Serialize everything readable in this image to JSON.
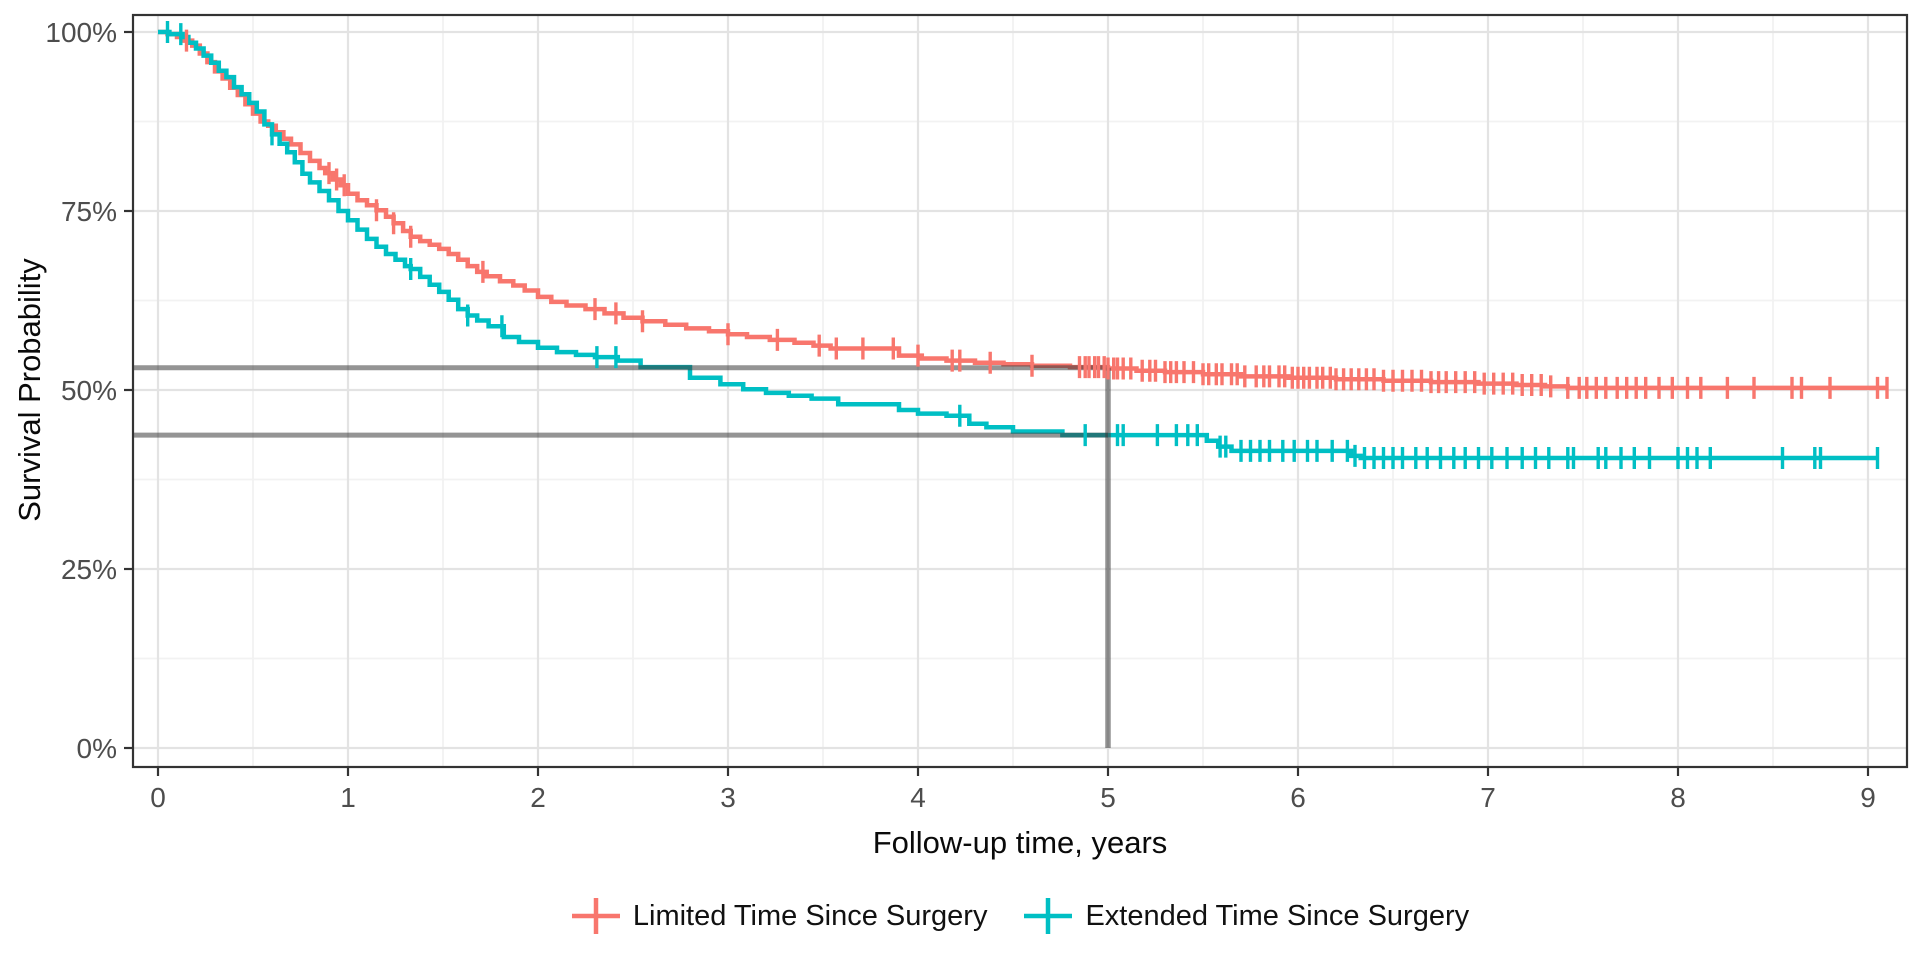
{
  "chart_data": {
    "type": "line",
    "subtype": "kaplan-meier-step",
    "title": "",
    "xlabel": "Follow-up time, years",
    "ylabel": "Survival Probability",
    "xlim": [
      -0.13,
      9.2
    ],
    "ylim": [
      0,
      1
    ],
    "grid": true,
    "legend_position": "bottom",
    "axes": {
      "x_ticks": {
        "values": [
          0,
          1,
          2,
          3,
          4,
          5,
          6,
          7,
          8,
          9
        ],
        "labels": [
          "0",
          "1",
          "2",
          "3",
          "4",
          "5",
          "6",
          "7",
          "8",
          "9"
        ]
      },
      "y_ticks": {
        "values": [
          0,
          0.25,
          0.5,
          0.75,
          1.0
        ],
        "labels": [
          "0%",
          "25%",
          "50%",
          "75%",
          "100%"
        ]
      },
      "x_minor": [
        0.5,
        1.5,
        2.5,
        3.5,
        4.5,
        5.5,
        6.5,
        7.5,
        8.5
      ],
      "y_minor": [
        0.125,
        0.375,
        0.625,
        0.875
      ]
    },
    "style": {
      "series_red": "#F8766D",
      "series_teal": "#00BFC4",
      "reference_rgba": "rgba(60,60,60,0.55)",
      "grid_major": "#E3E3E3",
      "grid_minor": "#F2F2F2",
      "panel_border": "#333333",
      "tick_mark": "#333333",
      "tick_text": "#4D4D4D"
    },
    "reference_lines": {
      "horizontal": [
        {
          "y": 0.531,
          "x_start": -0.132,
          "x_end": 5
        },
        {
          "y": 0.437,
          "x_start": -0.132,
          "x_end": 5
        }
      ],
      "vertical": [
        {
          "x": 5,
          "y_bottom": 0,
          "y_top": 0.531
        }
      ]
    },
    "series": [
      {
        "name": "Limited Time Since Surgery",
        "color": "#F8766D",
        "points": [
          [
            0,
            1
          ],
          [
            0.05,
            0.997
          ],
          [
            0.1,
            0.993
          ],
          [
            0.14,
            0.988
          ],
          [
            0.18,
            0.981
          ],
          [
            0.22,
            0.97
          ],
          [
            0.26,
            0.958
          ],
          [
            0.3,
            0.945
          ],
          [
            0.34,
            0.935
          ],
          [
            0.38,
            0.922
          ],
          [
            0.42,
            0.912
          ],
          [
            0.46,
            0.899
          ],
          [
            0.5,
            0.886
          ],
          [
            0.54,
            0.875
          ],
          [
            0.58,
            0.869
          ],
          [
            0.62,
            0.86
          ],
          [
            0.66,
            0.851
          ],
          [
            0.7,
            0.843
          ],
          [
            0.75,
            0.831
          ],
          [
            0.8,
            0.82
          ],
          [
            0.85,
            0.81
          ],
          [
            0.88,
            0.803
          ],
          [
            0.92,
            0.794
          ],
          [
            0.96,
            0.786
          ],
          [
            1.0,
            0.774
          ],
          [
            1.05,
            0.765
          ],
          [
            1.1,
            0.758
          ],
          [
            1.15,
            0.751
          ],
          [
            1.2,
            0.742
          ],
          [
            1.24,
            0.733
          ],
          [
            1.29,
            0.722
          ],
          [
            1.33,
            0.714
          ],
          [
            1.38,
            0.708
          ],
          [
            1.43,
            0.703
          ],
          [
            1.48,
            0.697
          ],
          [
            1.53,
            0.69
          ],
          [
            1.58,
            0.682
          ],
          [
            1.63,
            0.673
          ],
          [
            1.68,
            0.665
          ],
          [
            1.73,
            0.659
          ],
          [
            1.8,
            0.652
          ],
          [
            1.87,
            0.646
          ],
          [
            1.93,
            0.639
          ],
          [
            2.0,
            0.63
          ],
          [
            2.07,
            0.623
          ],
          [
            2.15,
            0.618
          ],
          [
            2.25,
            0.613
          ],
          [
            2.35,
            0.607
          ],
          [
            2.45,
            0.601
          ],
          [
            2.55,
            0.596
          ],
          [
            2.67,
            0.591
          ],
          [
            2.78,
            0.586
          ],
          [
            2.9,
            0.582
          ],
          [
            3.0,
            0.578
          ],
          [
            3.1,
            0.574
          ],
          [
            3.22,
            0.57
          ],
          [
            3.35,
            0.566
          ],
          [
            3.45,
            0.562
          ],
          [
            3.54,
            0.558
          ],
          [
            3.9,
            0.548
          ],
          [
            4.02,
            0.544
          ],
          [
            4.15,
            0.541
          ],
          [
            4.3,
            0.538
          ],
          [
            4.45,
            0.536
          ],
          [
            4.6,
            0.534
          ],
          [
            4.8,
            0.532
          ],
          [
            5.0,
            0.53
          ],
          [
            5.15,
            0.527
          ],
          [
            5.3,
            0.525
          ],
          [
            5.5,
            0.522
          ],
          [
            5.7,
            0.519
          ],
          [
            5.95,
            0.517
          ],
          [
            6.2,
            0.515
          ],
          [
            6.45,
            0.513
          ],
          [
            6.7,
            0.511
          ],
          [
            6.95,
            0.509
          ],
          [
            7.15,
            0.507
          ],
          [
            7.3,
            0.505
          ],
          [
            7.42,
            0.503
          ],
          [
            9.1,
            0.503
          ]
        ],
        "censor_times": [
          0.15,
          0.9,
          0.94,
          0.98,
          1.15,
          1.24,
          1.33,
          1.71,
          2.3,
          2.41,
          2.55,
          3.0,
          3.26,
          3.48,
          3.57,
          3.71,
          3.87,
          4.0,
          4.18,
          4.22,
          4.38,
          4.6,
          4.85,
          4.88,
          4.9,
          4.93,
          4.95,
          4.98,
          5.0,
          5.03,
          5.05,
          5.08,
          5.12,
          5.18,
          5.22,
          5.25,
          5.3,
          5.33,
          5.36,
          5.4,
          5.45,
          5.5,
          5.53,
          5.57,
          5.6,
          5.65,
          5.68,
          5.72,
          5.78,
          5.82,
          5.85,
          5.9,
          5.93,
          5.97,
          6.0,
          6.03,
          6.06,
          6.1,
          6.13,
          6.17,
          6.2,
          6.24,
          6.28,
          6.32,
          6.36,
          6.4,
          6.45,
          6.5,
          6.55,
          6.6,
          6.65,
          6.7,
          6.74,
          6.78,
          6.83,
          6.88,
          6.93,
          6.98,
          7.03,
          7.08,
          7.13,
          7.18,
          7.23,
          7.28,
          7.33,
          7.42,
          7.48,
          7.52,
          7.57,
          7.62,
          7.68,
          7.73,
          7.78,
          7.83,
          7.9,
          7.97,
          8.05,
          8.12,
          8.26,
          8.4,
          8.6,
          8.65,
          8.8,
          9.05,
          9.1
        ]
      },
      {
        "name": "Extended Time Since Surgery",
        "color": "#00BFC4",
        "points": [
          [
            0,
            1
          ],
          [
            0.06,
            0.997
          ],
          [
            0.13,
            0.993
          ],
          [
            0.16,
            0.985
          ],
          [
            0.2,
            0.977
          ],
          [
            0.24,
            0.967
          ],
          [
            0.28,
            0.957
          ],
          [
            0.32,
            0.946
          ],
          [
            0.36,
            0.937
          ],
          [
            0.4,
            0.923
          ],
          [
            0.44,
            0.913
          ],
          [
            0.48,
            0.901
          ],
          [
            0.52,
            0.889
          ],
          [
            0.56,
            0.871
          ],
          [
            0.6,
            0.857
          ],
          [
            0.64,
            0.844
          ],
          [
            0.68,
            0.832
          ],
          [
            0.72,
            0.818
          ],
          [
            0.76,
            0.802
          ],
          [
            0.8,
            0.79
          ],
          [
            0.85,
            0.778
          ],
          [
            0.9,
            0.765
          ],
          [
            0.95,
            0.75
          ],
          [
            1.0,
            0.737
          ],
          [
            1.05,
            0.724
          ],
          [
            1.1,
            0.711
          ],
          [
            1.15,
            0.7
          ],
          [
            1.2,
            0.69
          ],
          [
            1.25,
            0.682
          ],
          [
            1.3,
            0.673
          ],
          [
            1.33,
            0.669
          ],
          [
            1.38,
            0.658
          ],
          [
            1.43,
            0.647
          ],
          [
            1.48,
            0.637
          ],
          [
            1.53,
            0.626
          ],
          [
            1.58,
            0.613
          ],
          [
            1.63,
            0.604
          ],
          [
            1.68,
            0.597
          ],
          [
            1.74,
            0.589
          ],
          [
            1.82,
            0.574
          ],
          [
            1.9,
            0.567
          ],
          [
            2.0,
            0.559
          ],
          [
            2.1,
            0.553
          ],
          [
            2.2,
            0.549
          ],
          [
            2.3,
            0.546
          ],
          [
            2.42,
            0.541
          ],
          [
            2.54,
            0.532
          ],
          [
            2.8,
            0.517
          ],
          [
            2.96,
            0.508
          ],
          [
            3.08,
            0.501
          ],
          [
            3.2,
            0.496
          ],
          [
            3.32,
            0.492
          ],
          [
            3.44,
            0.488
          ],
          [
            3.58,
            0.48
          ],
          [
            3.9,
            0.472
          ],
          [
            4.0,
            0.467
          ],
          [
            4.15,
            0.464
          ],
          [
            4.27,
            0.453
          ],
          [
            4.36,
            0.448
          ],
          [
            4.5,
            0.442
          ],
          [
            4.76,
            0.437
          ],
          [
            5.52,
            0.429
          ],
          [
            5.58,
            0.421
          ],
          [
            5.65,
            0.415
          ],
          [
            6.28,
            0.408
          ],
          [
            6.33,
            0.405
          ],
          [
            9.05,
            0.405
          ]
        ],
        "censor_times": [
          0.05,
          0.12,
          0.6,
          1.33,
          1.63,
          1.81,
          2.31,
          2.41,
          4.22,
          4.88,
          5.05,
          5.08,
          5.26,
          5.36,
          5.42,
          5.47,
          5.59,
          5.62,
          5.7,
          5.75,
          5.8,
          5.85,
          5.92,
          5.98,
          6.05,
          6.1,
          6.18,
          6.26,
          6.3,
          6.35,
          6.4,
          6.45,
          6.5,
          6.55,
          6.62,
          6.68,
          6.75,
          6.82,
          6.88,
          6.95,
          7.02,
          7.1,
          7.18,
          7.25,
          7.32,
          7.42,
          7.45,
          7.58,
          7.62,
          7.7,
          7.77,
          7.85,
          8.0,
          8.05,
          8.1,
          8.17,
          8.55,
          8.72,
          8.75,
          9.05
        ]
      }
    ],
    "annotations": {
      "survival_at_5_years": {
        "limited": "53%",
        "extended": "44%"
      }
    }
  },
  "legend": {
    "items": [
      {
        "label": "Limited Time Since Surgery"
      },
      {
        "label": "Extended Time Since Surgery"
      }
    ]
  }
}
